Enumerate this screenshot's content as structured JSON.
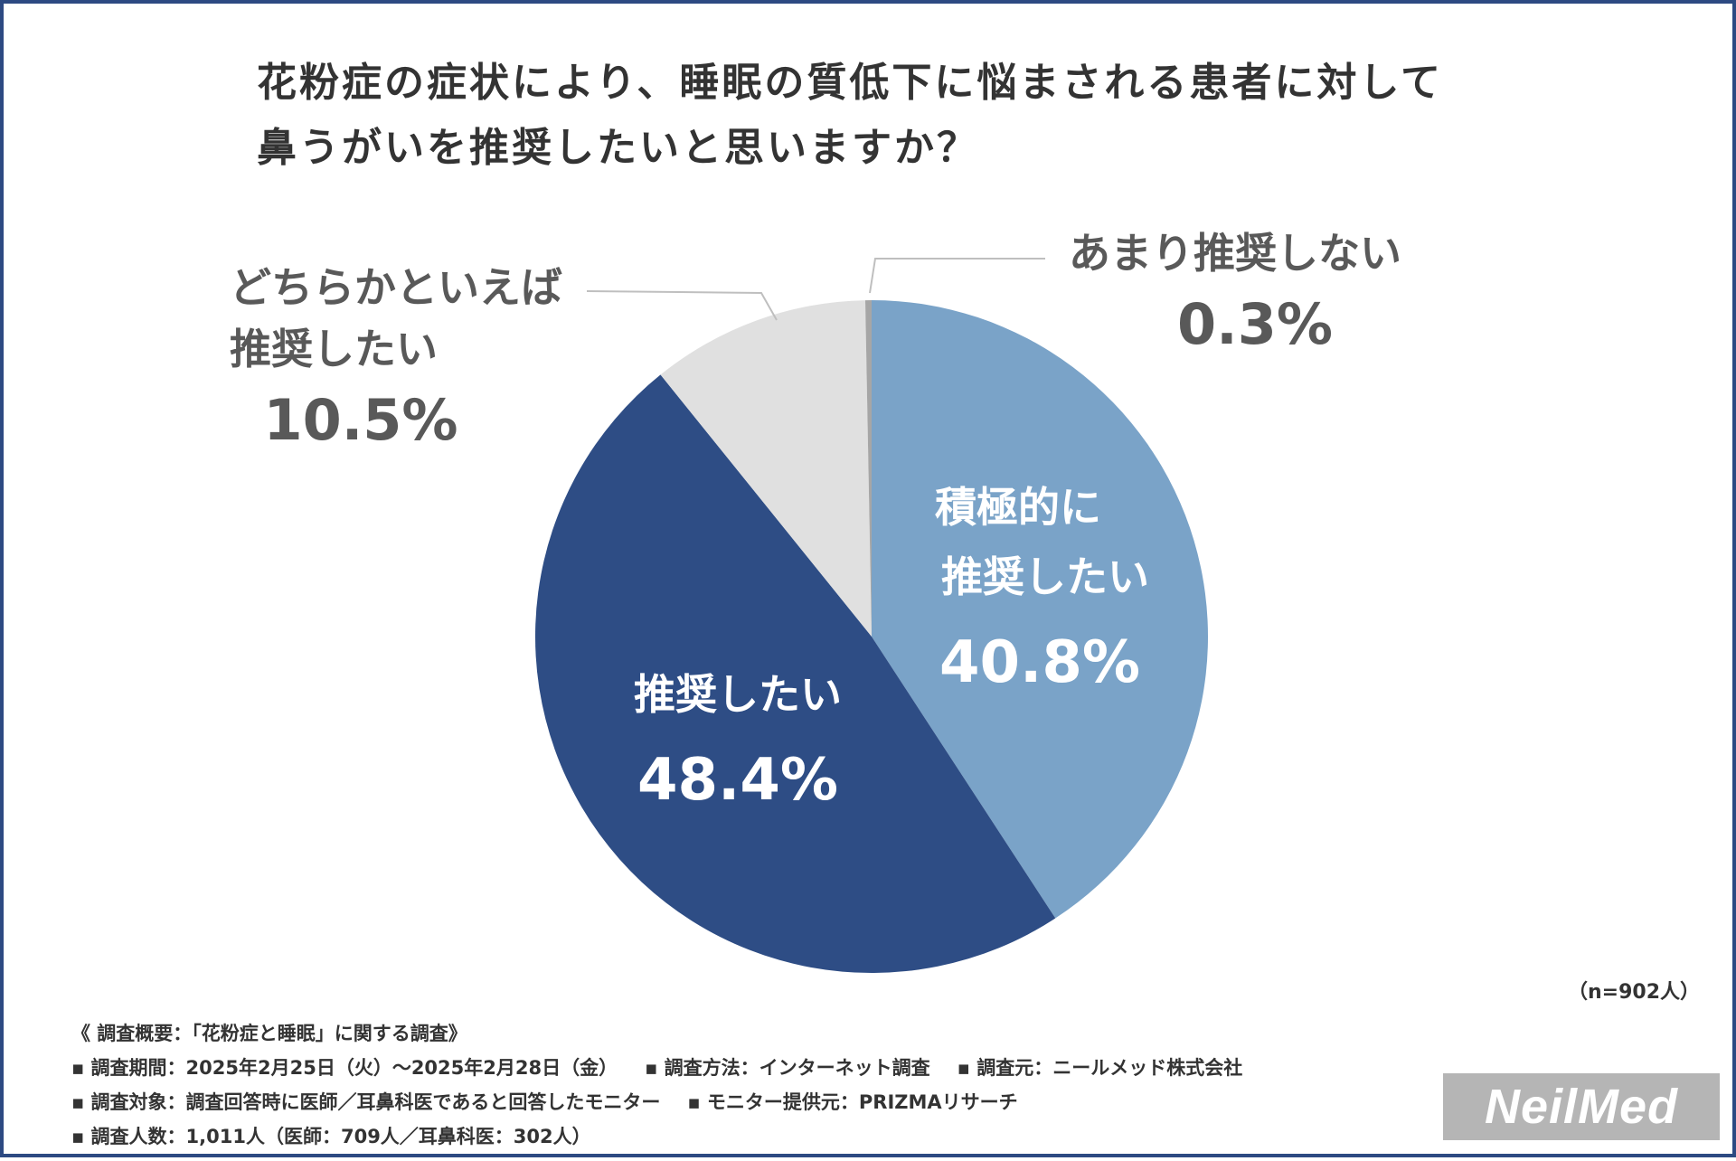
{
  "title": {
    "line1": "花粉症の症状により、睡眠の質低下に悩まされる患者に対して",
    "line2": "鼻うがいを推奨したいと思いますか？"
  },
  "chart_data": {
    "type": "pie",
    "title": "花粉症の症状により、睡眠の質低下に悩まされる患者に対して鼻うがいを推奨したいと思いますか？",
    "categories": [
      "積極的に推奨したい",
      "推奨したい",
      "どちらかといえば推奨したい",
      "あまり推奨しない"
    ],
    "values": [
      40.8,
      48.4,
      10.5,
      0.3
    ],
    "labels": [
      {
        "lines": [
          "積極的に",
          "推奨したい"
        ],
        "percent": "40.8%"
      },
      {
        "lines": [
          "推奨したい"
        ],
        "percent": "48.4%"
      },
      {
        "lines": [
          "どちらかといえば",
          "推奨したい"
        ],
        "percent": "10.5%"
      },
      {
        "lines": [
          "あまり推奨しない"
        ],
        "percent": "0.3%"
      }
    ],
    "colors": [
      "#7aa3c8",
      "#2e4d85",
      "#e0e0e0",
      "#a6a6a6"
    ],
    "start": "12 o'clock, clockwise"
  },
  "note": "（n=902人）",
  "footer": {
    "heading": "《 調査概要：「花粉症と睡眠」に関する調査》",
    "period": "▪ 調査期間：2025年2月25日（火）～2025年2月28日（金）",
    "method": "▪ 調査方法：インターネット調査",
    "source": "▪ 調査元：ニールメッド株式会社",
    "target": "▪ 調査対象：調査回答時に医師／耳鼻科医であると回答したモニター",
    "provider": "▪ モニター提供元：PRIZMAリサーチ",
    "count": "▪ 調査人数：1,011人（医師：709人／耳鼻科医：302人）"
  },
  "logo": "NeilMed"
}
